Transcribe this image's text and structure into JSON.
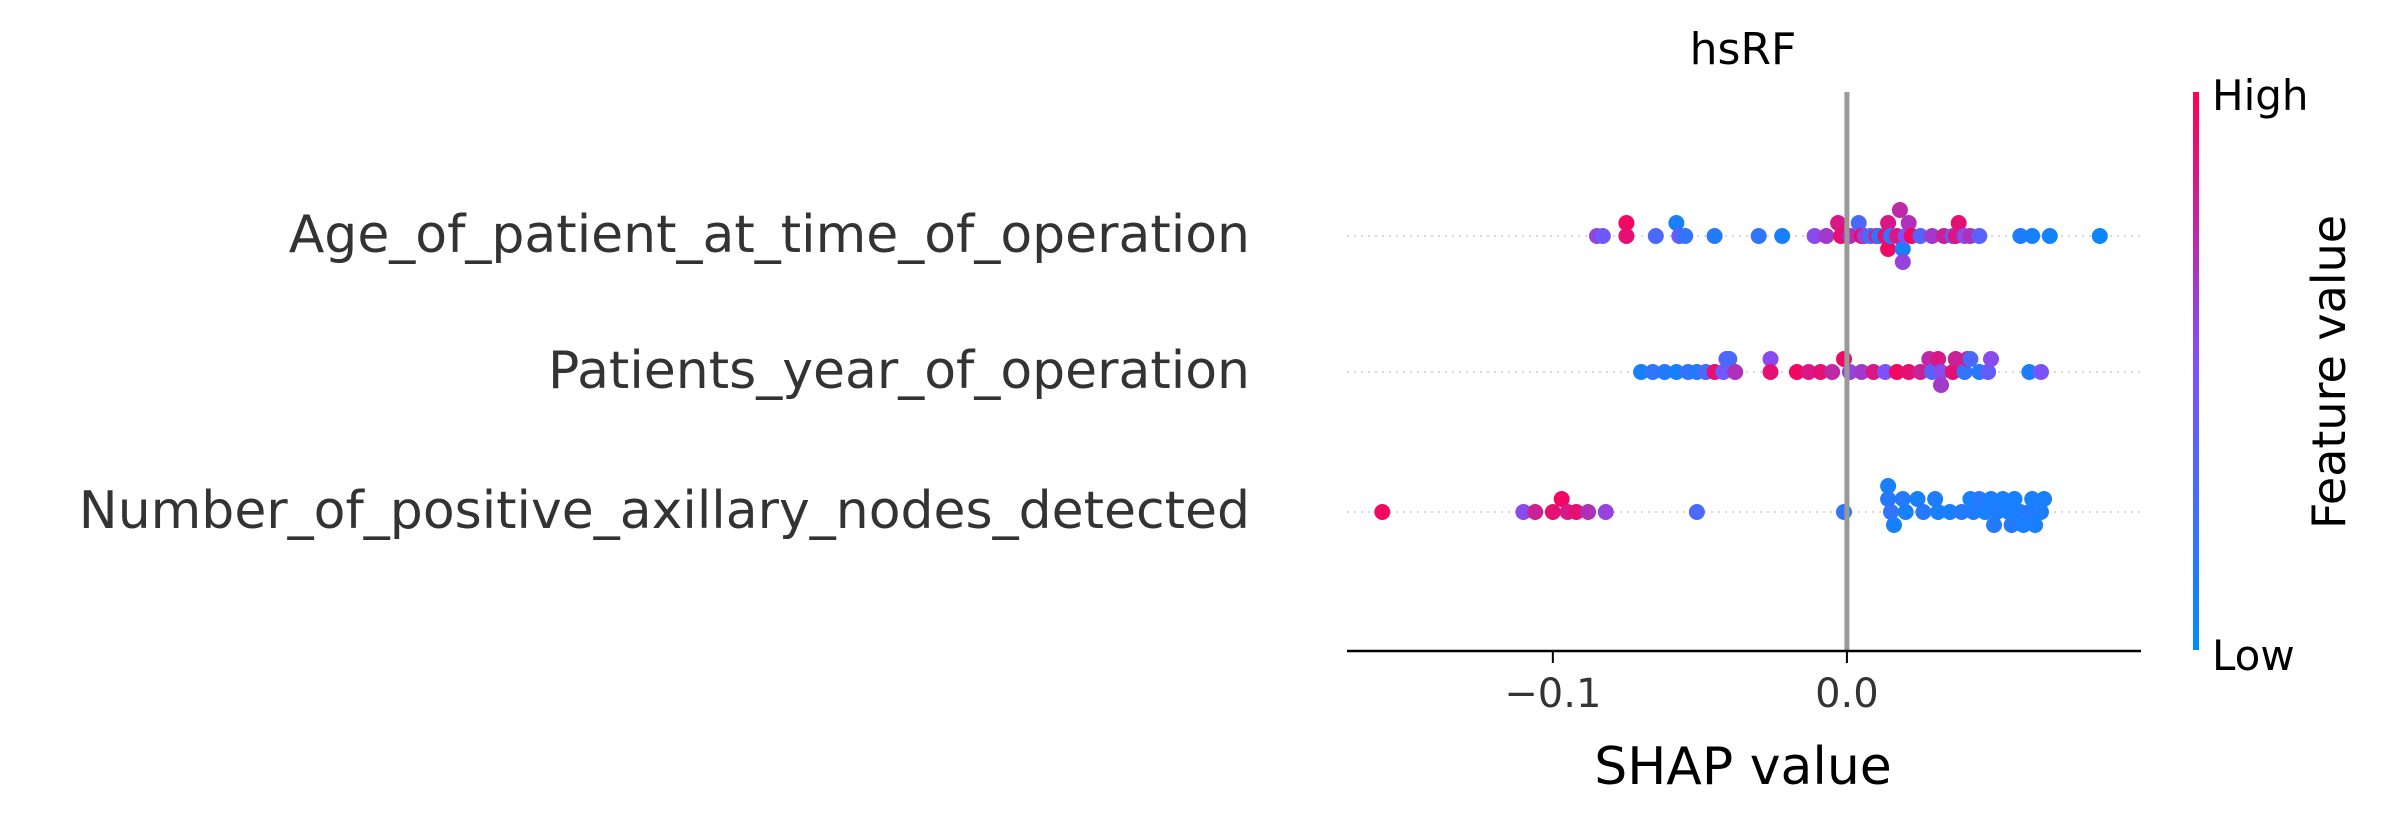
{
  "chart_data": {
    "type": "scatter",
    "subtype": "shap-beeswarm",
    "title": "hsRF",
    "xlabel": "SHAP value",
    "ylabel": "",
    "xlim": [
      -0.17,
      0.1
    ],
    "xticks": [
      -0.1,
      0.0
    ],
    "xtick_labels": [
      "−0.1",
      "0.0"
    ],
    "zero_line": 0.0,
    "grid": false,
    "colorbar": {
      "label": "Feature value",
      "high_label": "High",
      "low_label": "Low",
      "low_color": "#008bfb",
      "mid_color": "#7c52ff",
      "high_color": "#ff0051"
    },
    "features": [
      {
        "name": "Age_of_patient_at_time_of_operation",
        "points": [
          {
            "shap": -0.085,
            "value": 0.6,
            "lane": 0
          },
          {
            "shap": -0.083,
            "value": 0.45,
            "lane": 0
          },
          {
            "shap": -0.075,
            "value": 0.95,
            "lane": 1
          },
          {
            "shap": -0.075,
            "value": 0.9,
            "lane": 0
          },
          {
            "shap": -0.065,
            "value": 0.3,
            "lane": 0
          },
          {
            "shap": -0.058,
            "value": 0.1,
            "lane": 1
          },
          {
            "shap": -0.057,
            "value": 0.4,
            "lane": 0
          },
          {
            "shap": -0.055,
            "value": 0.2,
            "lane": 0
          },
          {
            "shap": -0.045,
            "value": 0.15,
            "lane": 0
          },
          {
            "shap": -0.03,
            "value": 0.2,
            "lane": 0
          },
          {
            "shap": -0.022,
            "value": 0.1,
            "lane": 0
          },
          {
            "shap": -0.011,
            "value": 0.55,
            "lane": 0
          },
          {
            "shap": -0.007,
            "value": 0.65,
            "lane": 0
          },
          {
            "shap": -0.003,
            "value": 0.85,
            "lane": 1
          },
          {
            "shap": -0.002,
            "value": 0.9,
            "lane": 0
          },
          {
            "shap": 0.001,
            "value": 0.7,
            "lane": 0
          },
          {
            "shap": 0.004,
            "value": 0.3,
            "lane": 1
          },
          {
            "shap": 0.005,
            "value": 0.95,
            "lane": 0
          },
          {
            "shap": 0.006,
            "value": 0.6,
            "lane": 0
          },
          {
            "shap": 0.008,
            "value": 0.25,
            "lane": 0
          },
          {
            "shap": 0.01,
            "value": 0.8,
            "lane": 0
          },
          {
            "shap": 0.011,
            "value": 0.15,
            "lane": 0
          },
          {
            "shap": 0.013,
            "value": 0.9,
            "lane": 0
          },
          {
            "shap": 0.014,
            "value": 0.95,
            "lane": -1
          },
          {
            "shap": 0.014,
            "value": 0.85,
            "lane": 1
          },
          {
            "shap": 0.015,
            "value": 0.2,
            "lane": 0
          },
          {
            "shap": 0.017,
            "value": 0.85,
            "lane": 0
          },
          {
            "shap": 0.018,
            "value": 0.75,
            "lane": 2
          },
          {
            "shap": 0.019,
            "value": 0.1,
            "lane": -1
          },
          {
            "shap": 0.019,
            "value": 0.6,
            "lane": -2
          },
          {
            "shap": 0.02,
            "value": 0.5,
            "lane": 0
          },
          {
            "shap": 0.021,
            "value": 0.7,
            "lane": 1
          },
          {
            "shap": 0.022,
            "value": 0.95,
            "lane": 0
          },
          {
            "shap": 0.025,
            "value": 0.35,
            "lane": 0
          },
          {
            "shap": 0.029,
            "value": 0.65,
            "lane": 0
          },
          {
            "shap": 0.033,
            "value": 0.8,
            "lane": 0
          },
          {
            "shap": 0.036,
            "value": 0.4,
            "lane": 0
          },
          {
            "shap": 0.037,
            "value": 0.85,
            "lane": 0
          },
          {
            "shap": 0.038,
            "value": 0.9,
            "lane": 1
          },
          {
            "shap": 0.04,
            "value": 0.55,
            "lane": 0
          },
          {
            "shap": 0.042,
            "value": 0.7,
            "lane": 0
          },
          {
            "shap": 0.045,
            "value": 0.35,
            "lane": 0
          },
          {
            "shap": 0.059,
            "value": 0.12,
            "lane": 0
          },
          {
            "shap": 0.063,
            "value": 0.1,
            "lane": 0
          },
          {
            "shap": 0.069,
            "value": 0.08,
            "lane": 0
          },
          {
            "shap": 0.086,
            "value": 0.05,
            "lane": 0
          }
        ]
      },
      {
        "name": "Patients_year_of_operation",
        "points": [
          {
            "shap": -0.07,
            "value": 0.1,
            "lane": 0
          },
          {
            "shap": -0.066,
            "value": 0.2,
            "lane": 0
          },
          {
            "shap": -0.062,
            "value": 0.15,
            "lane": 0
          },
          {
            "shap": -0.058,
            "value": 0.1,
            "lane": 0
          },
          {
            "shap": -0.054,
            "value": 0.2,
            "lane": 0
          },
          {
            "shap": -0.051,
            "value": 0.15,
            "lane": 0
          },
          {
            "shap": -0.048,
            "value": 0.3,
            "lane": 0
          },
          {
            "shap": -0.045,
            "value": 0.9,
            "lane": 0
          },
          {
            "shap": -0.042,
            "value": 0.45,
            "lane": 0
          },
          {
            "shap": -0.041,
            "value": 0.4,
            "lane": 1
          },
          {
            "shap": -0.04,
            "value": 0.3,
            "lane": 1
          },
          {
            "shap": -0.038,
            "value": 0.7,
            "lane": 0
          },
          {
            "shap": -0.026,
            "value": 0.55,
            "lane": 1
          },
          {
            "shap": -0.026,
            "value": 0.9,
            "lane": 0
          },
          {
            "shap": -0.017,
            "value": 0.95,
            "lane": 0
          },
          {
            "shap": -0.013,
            "value": 0.85,
            "lane": 0
          },
          {
            "shap": -0.009,
            "value": 0.9,
            "lane": 0
          },
          {
            "shap": -0.005,
            "value": 0.75,
            "lane": 0
          },
          {
            "shap": -0.001,
            "value": 0.95,
            "lane": 1
          },
          {
            "shap": 0.001,
            "value": 0.6,
            "lane": 0
          },
          {
            "shap": 0.005,
            "value": 0.65,
            "lane": 0
          },
          {
            "shap": 0.009,
            "value": 0.85,
            "lane": 0
          },
          {
            "shap": 0.013,
            "value": 0.5,
            "lane": 0
          },
          {
            "shap": 0.017,
            "value": 0.95,
            "lane": 0
          },
          {
            "shap": 0.021,
            "value": 0.9,
            "lane": 0
          },
          {
            "shap": 0.025,
            "value": 0.8,
            "lane": 0
          },
          {
            "shap": 0.028,
            "value": 0.75,
            "lane": 1
          },
          {
            "shap": 0.029,
            "value": 0.35,
            "lane": 0
          },
          {
            "shap": 0.031,
            "value": 0.85,
            "lane": 1
          },
          {
            "shap": 0.032,
            "value": 0.55,
            "lane": 0
          },
          {
            "shap": 0.032,
            "value": 0.65,
            "lane": -1
          },
          {
            "shap": 0.036,
            "value": 0.9,
            "lane": 0
          },
          {
            "shap": 0.037,
            "value": 0.8,
            "lane": 1
          },
          {
            "shap": 0.04,
            "value": 0.2,
            "lane": 0
          },
          {
            "shap": 0.041,
            "value": 0.85,
            "lane": 1
          },
          {
            "shap": 0.042,
            "value": 0.3,
            "lane": 1
          },
          {
            "shap": 0.045,
            "value": 0.15,
            "lane": 0
          },
          {
            "shap": 0.048,
            "value": 0.4,
            "lane": 0
          },
          {
            "shap": 0.049,
            "value": 0.55,
            "lane": 1
          },
          {
            "shap": 0.062,
            "value": 0.12,
            "lane": 0
          },
          {
            "shap": 0.066,
            "value": 0.5,
            "lane": 0
          }
        ]
      },
      {
        "name": "Number_of_positive_axillary_nodes_detected",
        "points": [
          {
            "shap": -0.158,
            "value": 0.95,
            "lane": 0
          },
          {
            "shap": -0.11,
            "value": 0.55,
            "lane": 0
          },
          {
            "shap": -0.106,
            "value": 0.8,
            "lane": 0
          },
          {
            "shap": -0.1,
            "value": 0.9,
            "lane": 0
          },
          {
            "shap": -0.097,
            "value": 0.95,
            "lane": 1
          },
          {
            "shap": -0.095,
            "value": 0.85,
            "lane": 0
          },
          {
            "shap": -0.092,
            "value": 0.9,
            "lane": 0
          },
          {
            "shap": -0.088,
            "value": 0.7,
            "lane": 0
          },
          {
            "shap": -0.082,
            "value": 0.6,
            "lane": 0
          },
          {
            "shap": -0.051,
            "value": 0.3,
            "lane": 0
          },
          {
            "shap": -0.001,
            "value": 0.2,
            "lane": 0
          },
          {
            "shap": 0.014,
            "value": 0.1,
            "lane": 2
          },
          {
            "shap": 0.014,
            "value": 0.15,
            "lane": 1
          },
          {
            "shap": 0.015,
            "value": 0.2,
            "lane": 0
          },
          {
            "shap": 0.016,
            "value": 0.1,
            "lane": -1
          },
          {
            "shap": 0.019,
            "value": 0.15,
            "lane": 1
          },
          {
            "shap": 0.02,
            "value": 0.1,
            "lane": 0
          },
          {
            "shap": 0.024,
            "value": 0.1,
            "lane": 1
          },
          {
            "shap": 0.026,
            "value": 0.15,
            "lane": 0
          },
          {
            "shap": 0.03,
            "value": 0.12,
            "lane": 1
          },
          {
            "shap": 0.031,
            "value": 0.1,
            "lane": 0
          },
          {
            "shap": 0.035,
            "value": 0.1,
            "lane": 0
          },
          {
            "shap": 0.039,
            "value": 0.15,
            "lane": 0
          },
          {
            "shap": 0.042,
            "value": 0.1,
            "lane": 1
          },
          {
            "shap": 0.043,
            "value": 0.12,
            "lane": 0
          },
          {
            "shap": 0.045,
            "value": 0.15,
            "lane": 1
          },
          {
            "shap": 0.047,
            "value": 0.1,
            "lane": 0
          },
          {
            "shap": 0.049,
            "value": 0.1,
            "lane": 1
          },
          {
            "shap": 0.05,
            "value": 0.15,
            "lane": -1
          },
          {
            "shap": 0.051,
            "value": 0.12,
            "lane": 0
          },
          {
            "shap": 0.053,
            "value": 0.1,
            "lane": 1
          },
          {
            "shap": 0.055,
            "value": 0.1,
            "lane": 0
          },
          {
            "shap": 0.056,
            "value": 0.15,
            "lane": -1
          },
          {
            "shap": 0.057,
            "value": 0.1,
            "lane": 1
          },
          {
            "shap": 0.059,
            "value": 0.12,
            "lane": 0
          },
          {
            "shap": 0.06,
            "value": 0.1,
            "lane": -1
          },
          {
            "shap": 0.062,
            "value": 0.15,
            "lane": 0
          },
          {
            "shap": 0.063,
            "value": 0.1,
            "lane": 1
          },
          {
            "shap": 0.064,
            "value": 0.1,
            "lane": -1
          },
          {
            "shap": 0.066,
            "value": 0.12,
            "lane": 0
          },
          {
            "shap": 0.067,
            "value": 0.1,
            "lane": 1
          }
        ]
      }
    ]
  }
}
